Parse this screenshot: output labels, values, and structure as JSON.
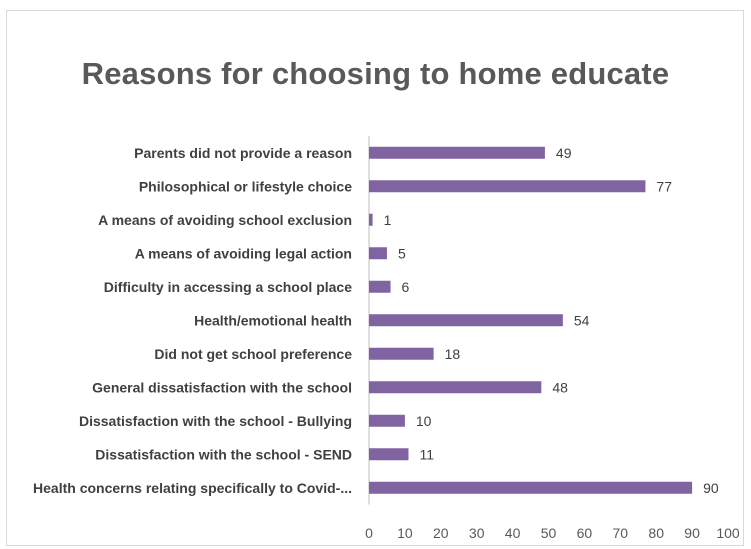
{
  "chart_data": {
    "type": "bar",
    "orientation": "horizontal",
    "title": "Reasons for choosing to home educate",
    "categories": [
      "Parents did not provide a reason",
      "Philosophical or lifestyle choice",
      "A means of avoiding school exclusion",
      "A means of avoiding legal action",
      "Difficulty in accessing a school place",
      "Health/emotional health",
      "Did not get school preference",
      "General dissatisfaction with the school",
      "Dissatisfaction with the school - Bullying",
      "Dissatisfaction with the school - SEND",
      "Health concerns relating specifically to Covid-..."
    ],
    "values": [
      49,
      77,
      1,
      5,
      6,
      54,
      18,
      48,
      10,
      11,
      90
    ],
    "xlim": [
      0,
      100
    ],
    "xticks": [
      0,
      10,
      20,
      30,
      40,
      50,
      60,
      70,
      80,
      90,
      100
    ],
    "data_labels": true,
    "grid": false,
    "legend": "none",
    "bar_color": "#8064a2"
  }
}
